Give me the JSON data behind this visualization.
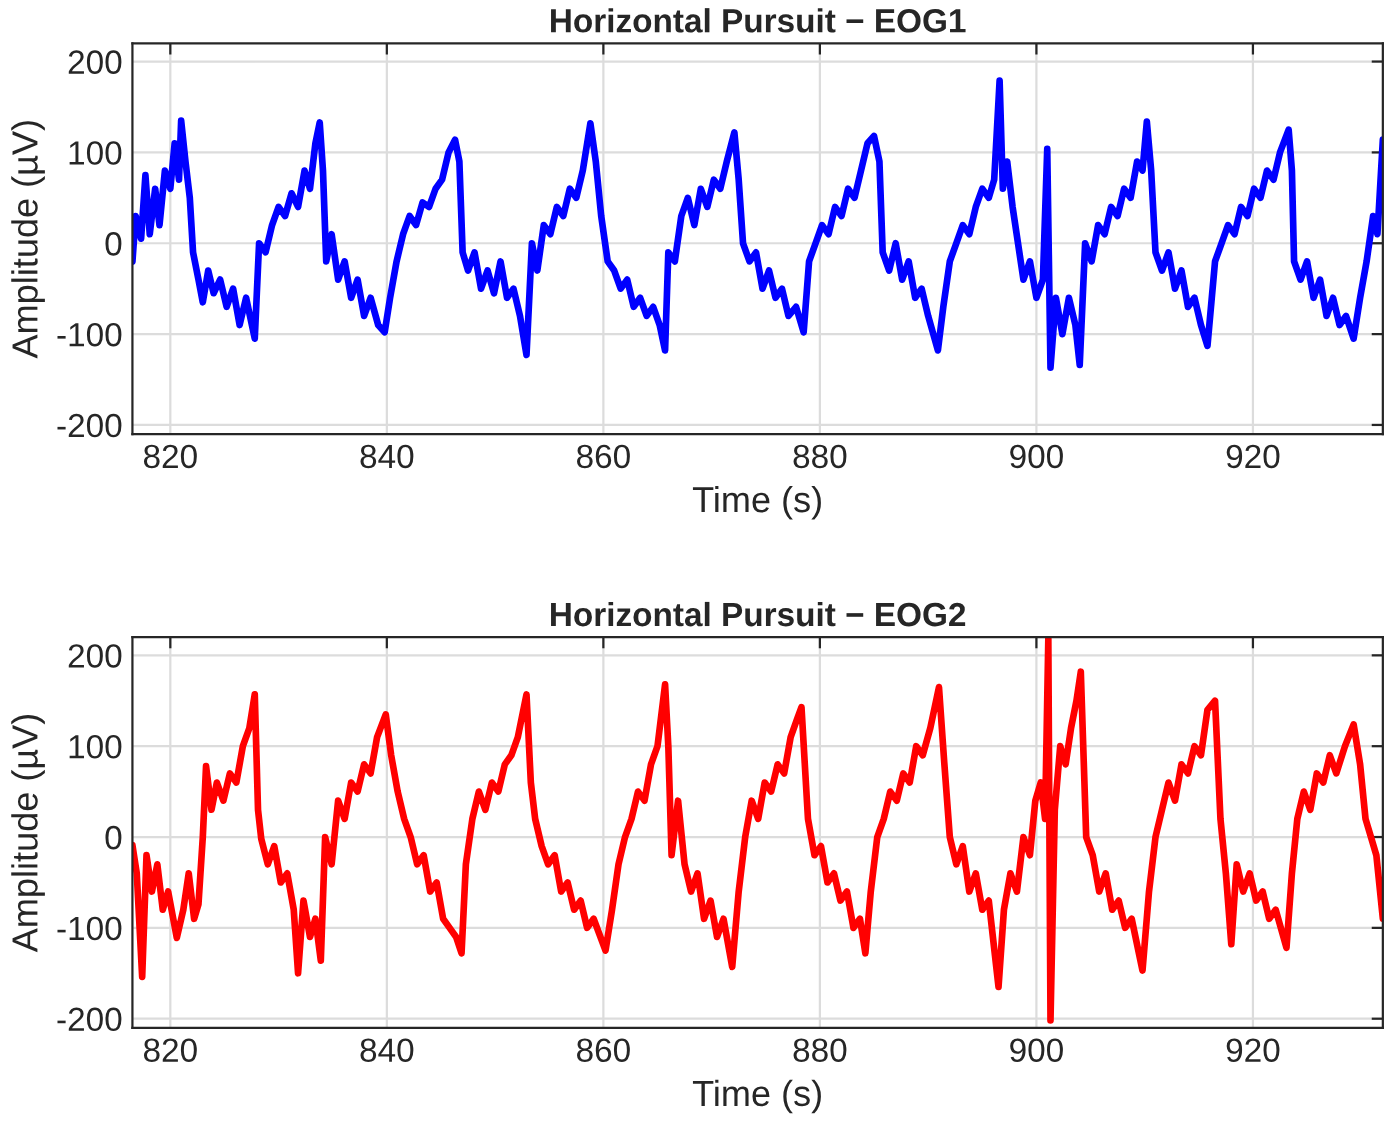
{
  "chart_data": [
    {
      "type": "line",
      "title": "Horizontal Pursuit − EOG1",
      "xlabel": "Time (s)",
      "ylabel": "Amplitude (µV)",
      "xlim": [
        816.5,
        932
      ],
      "ylim": [
        -210,
        220
      ],
      "xticks": [
        820,
        840,
        860,
        880,
        900,
        920
      ],
      "yticks": [
        -200,
        -100,
        0,
        100,
        200
      ],
      "grid": true,
      "marker": "none",
      "line_style": "solid",
      "series": [
        {
          "color": "#0000ff",
          "x": [
            816.5,
            816.8,
            817.3,
            817.7,
            818.1,
            818.6,
            819.0,
            819.5,
            820.0,
            820.4,
            820.8,
            821.0,
            821.4,
            821.8,
            822.1,
            822.6,
            823.0,
            823.5,
            824.0,
            824.6,
            825.2,
            825.8,
            826.4,
            827.0,
            827.8,
            828.2,
            828.8,
            829.4,
            830.0,
            830.6,
            831.2,
            831.8,
            832.4,
            832.9,
            833.4,
            833.8,
            834.1,
            834.4,
            834.9,
            835.5,
            836.1,
            836.7,
            837.3,
            837.9,
            838.5,
            839.2,
            839.8,
            840.3,
            840.9,
            841.5,
            842.1,
            842.7,
            843.3,
            843.9,
            844.5,
            845.1,
            845.7,
            846.3,
            846.7,
            847.0,
            847.5,
            848.1,
            848.7,
            849.3,
            849.9,
            850.5,
            851.1,
            851.7,
            852.3,
            852.9,
            853.4,
            853.9,
            854.5,
            855.1,
            855.7,
            856.3,
            856.9,
            857.5,
            858.1,
            858.8,
            859.3,
            859.8,
            860.4,
            861.0,
            861.6,
            862.2,
            862.8,
            863.4,
            864.0,
            864.6,
            865.2,
            865.7,
            866.0,
            866.6,
            867.2,
            867.8,
            868.4,
            869.0,
            869.6,
            870.2,
            870.8,
            871.4,
            872.1,
            872.5,
            872.9,
            873.5,
            874.1,
            874.7,
            875.3,
            875.9,
            876.5,
            877.1,
            877.8,
            878.5,
            879.0,
            879.6,
            880.2,
            880.8,
            881.4,
            882.0,
            882.6,
            883.2,
            883.8,
            884.4,
            885.0,
            885.5,
            885.8,
            886.4,
            887.0,
            887.6,
            888.2,
            888.8,
            889.4,
            890.0,
            890.9,
            891.4,
            892.0,
            892.6,
            893.2,
            893.8,
            894.4,
            895.0,
            895.6,
            896.1,
            896.6,
            896.9,
            897.3,
            897.8,
            898.3,
            898.8,
            899.4,
            900.0,
            900.6,
            901.0,
            901.3,
            901.8,
            902.4,
            903.0,
            903.6,
            904.0,
            904.5,
            905.1,
            905.7,
            906.3,
            906.9,
            907.5,
            908.1,
            908.7,
            909.3,
            909.8,
            910.2,
            910.6,
            911.0,
            911.6,
            912.2,
            912.8,
            913.4,
            914.0,
            914.6,
            915.2,
            915.8,
            916.5,
            917.1,
            917.7,
            918.3,
            918.9,
            919.5,
            920.1,
            920.7,
            921.3,
            921.9,
            922.5,
            923.3,
            923.6,
            923.8,
            924.4,
            925.0,
            925.6,
            926.2,
            926.8,
            927.4,
            928.0,
            928.6,
            929.3,
            929.9,
            930.5,
            931.1,
            931.5,
            932.0
          ],
          "values": [
            -20,
            30,
            5,
            75,
            10,
            60,
            20,
            80,
            60,
            110,
            70,
            135,
            90,
            50,
            -10,
            -40,
            -65,
            -30,
            -55,
            -40,
            -70,
            -50,
            -90,
            -60,
            -105,
            0,
            -10,
            20,
            40,
            30,
            55,
            40,
            80,
            60,
            110,
            133,
            80,
            -20,
            10,
            -40,
            -20,
            -60,
            -40,
            -80,
            -60,
            -90,
            -98,
            -60,
            -20,
            10,
            30,
            20,
            45,
            40,
            60,
            70,
            100,
            114,
            90,
            -10,
            -30,
            -10,
            -50,
            -30,
            -55,
            -20,
            -60,
            -50,
            -80,
            -123,
            0,
            -30,
            20,
            10,
            40,
            30,
            60,
            50,
            80,
            132,
            90,
            30,
            -20,
            -30,
            -50,
            -40,
            -70,
            -60,
            -80,
            -70,
            -90,
            -118,
            -10,
            -20,
            30,
            50,
            20,
            60,
            40,
            70,
            60,
            90,
            122,
            70,
            0,
            -20,
            -10,
            -50,
            -30,
            -60,
            -50,
            -80,
            -70,
            -98,
            -20,
            0,
            20,
            10,
            40,
            30,
            60,
            50,
            80,
            110,
            118,
            90,
            -10,
            -30,
            0,
            -40,
            -20,
            -60,
            -50,
            -80,
            -118,
            -70,
            -20,
            0,
            20,
            10,
            40,
            60,
            50,
            70,
            179,
            60,
            90,
            40,
            0,
            -40,
            -20,
            -60,
            -40,
            104,
            -137,
            -60,
            -100,
            -60,
            -90,
            -134,
            0,
            -20,
            20,
            10,
            40,
            30,
            60,
            50,
            90,
            80,
            134,
            80,
            -10,
            -30,
            -10,
            -50,
            -30,
            -70,
            -60,
            -90,
            -113,
            -20,
            0,
            20,
            10,
            40,
            30,
            60,
            50,
            80,
            70,
            100,
            125,
            80,
            -20,
            -40,
            -20,
            -60,
            -40,
            -80,
            -60,
            -90,
            -80,
            -105,
            -60,
            -20,
            30,
            10,
            114
          ]
        }
      ]
    },
    {
      "type": "line",
      "title": "Horizontal Pursuit − EOG2",
      "xlabel": "Time (s)",
      "ylabel": "Amplitude (µV)",
      "xlim": [
        816.5,
        932
      ],
      "ylim": [
        -210,
        220
      ],
      "xticks": [
        820,
        840,
        860,
        880,
        900,
        920
      ],
      "yticks": [
        -200,
        -100,
        0,
        100,
        200
      ],
      "grid": true,
      "marker": "none",
      "line_style": "solid",
      "series": [
        {
          "color": "#ff0000",
          "x": [
            816.5,
            816.9,
            817.4,
            817.8,
            818.3,
            818.8,
            819.3,
            819.8,
            820.6,
            821.2,
            821.7,
            822.2,
            822.6,
            823.0,
            823.3,
            823.8,
            824.3,
            824.9,
            825.5,
            826.1,
            826.7,
            827.3,
            827.8,
            828.1,
            828.4,
            829.0,
            829.6,
            830.2,
            830.8,
            831.4,
            831.8,
            832.3,
            832.9,
            833.4,
            833.9,
            834.3,
            834.9,
            835.5,
            836.1,
            836.7,
            837.3,
            837.9,
            838.5,
            839.1,
            839.9,
            840.4,
            841.0,
            841.6,
            842.2,
            842.8,
            843.4,
            844.0,
            844.6,
            845.2,
            845.8,
            846.4,
            846.9,
            847.3,
            847.9,
            848.5,
            849.1,
            849.7,
            850.3,
            850.9,
            851.5,
            852.1,
            852.9,
            853.3,
            853.7,
            854.3,
            854.9,
            855.5,
            856.1,
            856.7,
            857.3,
            857.9,
            858.5,
            859.1,
            860.2,
            860.8,
            861.4,
            862.0,
            862.6,
            863.2,
            863.8,
            864.4,
            865.0,
            865.7,
            866.0,
            866.3,
            866.9,
            867.5,
            868.1,
            868.7,
            869.3,
            869.9,
            870.5,
            871.1,
            871.9,
            872.5,
            873.1,
            873.7,
            874.3,
            874.9,
            875.5,
            876.1,
            876.7,
            877.3,
            877.9,
            878.3,
            878.9,
            879.5,
            880.1,
            880.7,
            881.3,
            881.9,
            882.5,
            883.1,
            883.7,
            884.2,
            884.7,
            885.3,
            885.9,
            886.5,
            887.1,
            887.7,
            888.3,
            888.9,
            889.5,
            890.2,
            891.0,
            891.5,
            892.0,
            892.6,
            893.2,
            893.8,
            894.4,
            895.0,
            895.6,
            896.5,
            897.0,
            897.6,
            898.2,
            898.8,
            899.4,
            899.9,
            900.4,
            900.8,
            901.1,
            901.3,
            901.7,
            902.2,
            902.7,
            903.2,
            903.7,
            904.1,
            904.6,
            905.2,
            905.8,
            906.4,
            907.0,
            907.6,
            908.2,
            908.8,
            909.8,
            910.4,
            911.0,
            911.6,
            912.2,
            912.8,
            913.4,
            914.0,
            914.6,
            915.2,
            915.8,
            916.5,
            917.0,
            917.5,
            918.0,
            918.5,
            919.1,
            919.7,
            920.3,
            920.9,
            921.5,
            922.1,
            923.1,
            923.6,
            924.1,
            924.7,
            925.3,
            925.9,
            926.5,
            927.1,
            927.7,
            928.5,
            929.3,
            929.9,
            930.4,
            930.9,
            931.4,
            932.0
          ],
          "values": [
            -9,
            -40,
            -154,
            -20,
            -60,
            -30,
            -80,
            -60,
            -111,
            -80,
            -40,
            -90,
            -74,
            0,
            78,
            30,
            60,
            40,
            70,
            60,
            100,
            120,
            157,
            30,
            -2,
            -30,
            -10,
            -50,
            -40,
            -80,
            -150,
            -70,
            -110,
            -90,
            -136,
            0,
            -30,
            40,
            20,
            60,
            50,
            80,
            70,
            110,
            135,
            90,
            50,
            20,
            0,
            -30,
            -20,
            -60,
            -50,
            -90,
            -100,
            -110,
            -128,
            -30,
            20,
            50,
            30,
            60,
            50,
            80,
            90,
            110,
            157,
            60,
            20,
            -10,
            -30,
            -20,
            -60,
            -50,
            -80,
            -70,
            -100,
            -90,
            -125,
            -80,
            -30,
            0,
            20,
            50,
            40,
            80,
            100,
            168,
            100,
            -20,
            40,
            -30,
            -60,
            -40,
            -90,
            -70,
            -110,
            -90,
            -143,
            -60,
            0,
            40,
            20,
            60,
            50,
            80,
            70,
            110,
            130,
            143,
            20,
            -20,
            -10,
            -50,
            -40,
            -70,
            -60,
            -100,
            -90,
            -128,
            -60,
            0,
            20,
            50,
            40,
            70,
            60,
            100,
            90,
            120,
            165,
            80,
            0,
            -30,
            -10,
            -60,
            -40,
            -80,
            -70,
            -165,
            -80,
            -40,
            -60,
            0,
            -20,
            40,
            60,
            20,
            218,
            -202,
            30,
            100,
            80,
            120,
            150,
            182,
            0,
            -20,
            -60,
            -40,
            -80,
            -70,
            -100,
            -90,
            -147,
            -60,
            0,
            30,
            60,
            40,
            80,
            70,
            100,
            90,
            140,
            150,
            20,
            -40,
            -118,
            -30,
            -60,
            -40,
            -70,
            -60,
            -90,
            -80,
            -122,
            -40,
            20,
            50,
            30,
            70,
            60,
            90,
            70,
            100,
            124,
            80,
            20,
            0,
            -20,
            -90
          ]
        }
      ]
    }
  ]
}
